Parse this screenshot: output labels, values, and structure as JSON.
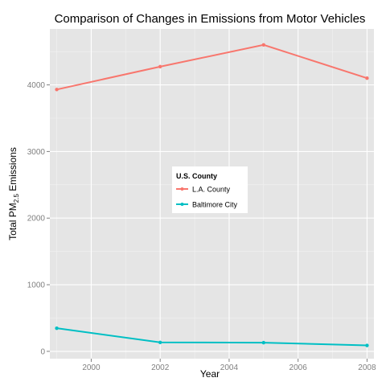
{
  "chart_data": {
    "type": "line",
    "title": "Comparison of Changes in Emissions from Motor Vehicles",
    "xlabel": "Year",
    "ylabel": {
      "main": "Total PM",
      "sub": "2.5",
      "rest": " Emissions"
    },
    "xlim": [
      1998.8,
      2008.2
    ],
    "ylim": [
      -110,
      4840
    ],
    "x_ticks": [
      2000,
      2002,
      2004,
      2006,
      2008
    ],
    "y_ticks": [
      0,
      1000,
      2000,
      3000,
      4000
    ],
    "grid": true,
    "legend": {
      "title": "U.S. County",
      "position": "center"
    },
    "series": [
      {
        "name": "L.A. County",
        "color": "#F8766D",
        "x": [
          1999,
          2002,
          2005,
          2008
        ],
        "values": [
          3931,
          4274,
          4601,
          4101
        ]
      },
      {
        "name": "Baltimore City",
        "color": "#00BFC4",
        "x": [
          1999,
          2002,
          2005,
          2008
        ],
        "values": [
          347,
          134,
          130,
          89
        ]
      }
    ]
  }
}
